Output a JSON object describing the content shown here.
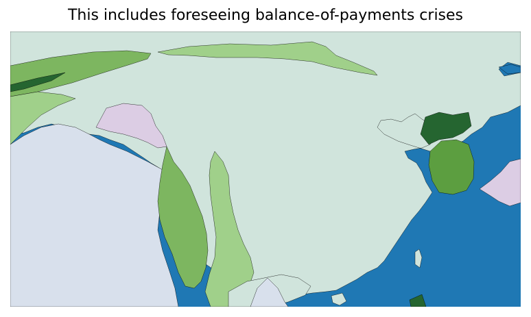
{
  "title": "This includes foreseeing balance-of-payments crises",
  "colors": {
    "ocean": "#1f78b4",
    "land_main": "#d0e4dc",
    "land_west": "#d8e0ec",
    "light_green": "#a0d08a",
    "mid_green": "#7db660",
    "green": "#5c9e40",
    "dark_green": "#256530",
    "lavender": "#dccde4"
  }
}
